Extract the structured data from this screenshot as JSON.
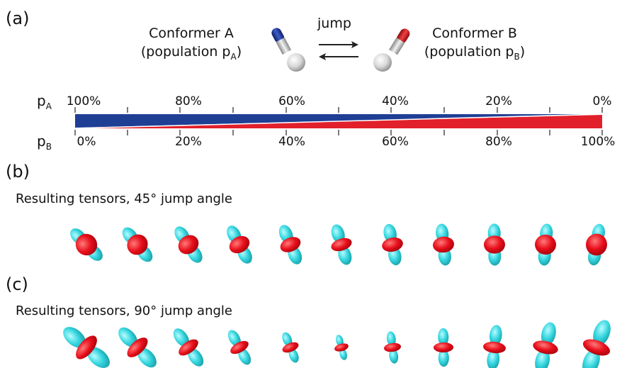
{
  "panels": {
    "a": "(a)",
    "b": "(b)",
    "c": "(c)"
  },
  "conformer_a": {
    "name": "Conformer A",
    "population_prefix": "(population p",
    "population_sub": "A",
    "population_suffix": ")"
  },
  "conformer_b": {
    "name": "Conformer B",
    "population_prefix": "(population p",
    "population_sub": "B",
    "population_suffix": ")"
  },
  "jump_label": "jump",
  "pa_label": {
    "main": "p",
    "sub": "A"
  },
  "pb_label": {
    "main": "p",
    "sub": "B"
  },
  "pa_ticks": [
    "100%",
    "80%",
    "60%",
    "40%",
    "20%",
    "0%"
  ],
  "pb_ticks": [
    "0%",
    "20%",
    "40%",
    "60%",
    "80%",
    "100%"
  ],
  "tensor_rows": {
    "b": {
      "title": "Resulting tensors, 45° jump angle",
      "count": 11
    },
    "c": {
      "title": "Resulting tensors, 90° jump angle",
      "count": 11
    }
  },
  "colors": {
    "blue": "#1f3f95",
    "red": "#e1202b",
    "cyan": "#35d6df",
    "tensor_red": "#e8101c"
  }
}
